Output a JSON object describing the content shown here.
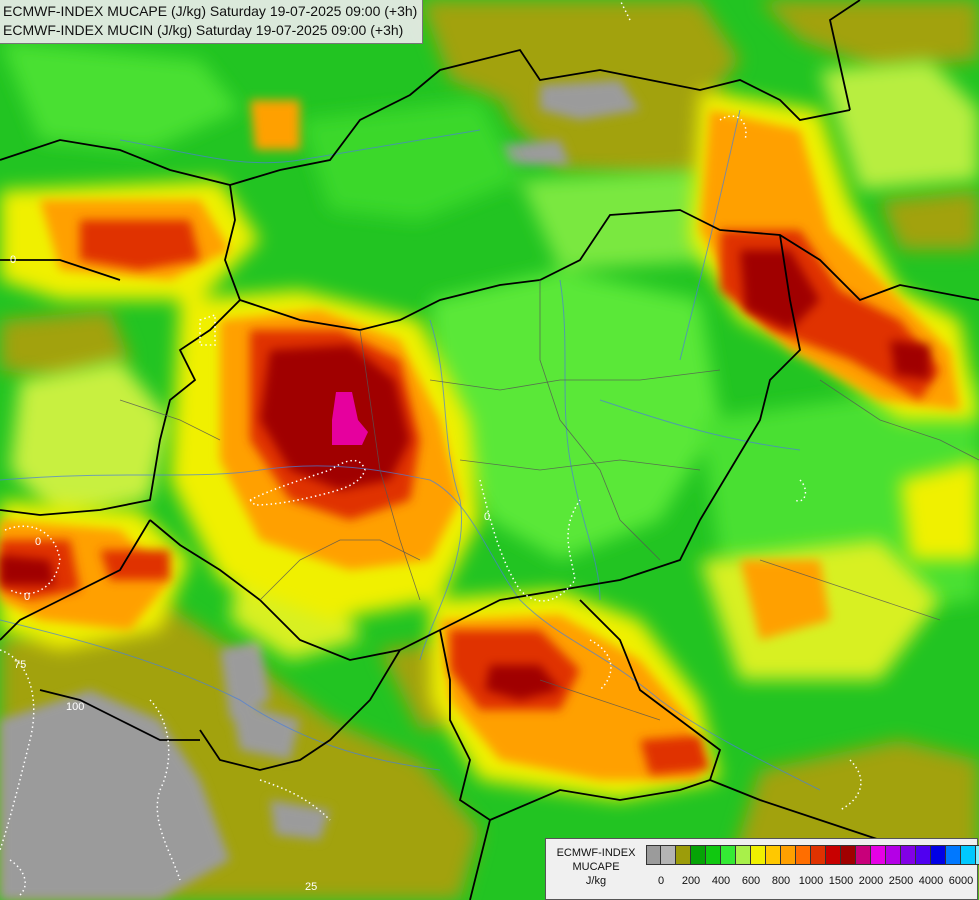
{
  "header": {
    "line1": "ECMWF-INDEX MUCAPE (J/kg) Saturday 19-07-2025 09:00 (+3h)",
    "line2": "ECMWF-INDEX MUCIN (J/kg) Saturday 19-07-2025 09:00 (+3h)"
  },
  "map": {
    "cin_contour_labels": [
      "0",
      "0",
      "0",
      "0",
      "75",
      "100",
      "25"
    ]
  },
  "legend": {
    "line1": "ECMWF-INDEX",
    "line2": "MUCAPE",
    "line3": "J/kg",
    "tick_labels": [
      "0",
      "200",
      "400",
      "600",
      "800",
      "1000",
      "1500",
      "2000",
      "2500",
      "4000",
      "6000"
    ],
    "colors": [
      "#9b9b9b",
      "#b4b4b4",
      "#9c9c0a",
      "#06a306",
      "#10c810",
      "#34ea34",
      "#a8f04a",
      "#f0f000",
      "#ffc800",
      "#ffa000",
      "#ff6e00",
      "#e03200",
      "#c80000",
      "#a00000",
      "#c8007a",
      "#e600e6",
      "#b400e6",
      "#8200e6",
      "#5000f0",
      "#0000e6",
      "#0078ff",
      "#00c8ff",
      "#7df0ff",
      "#ffffff"
    ]
  }
}
